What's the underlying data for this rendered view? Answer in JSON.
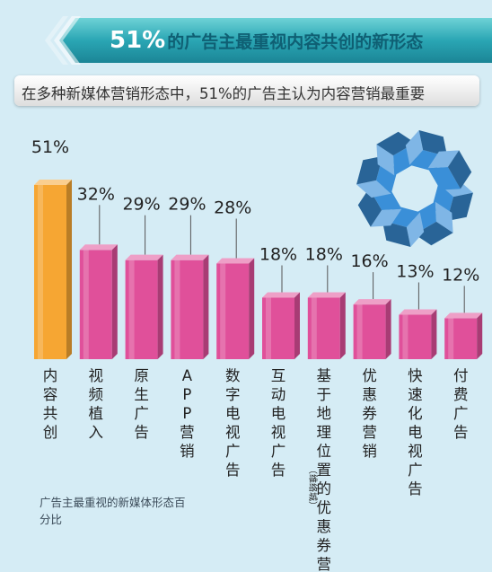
{
  "header": {
    "title_pct": "51%",
    "title_rest": "的广告主最重视内容共创的新形态",
    "subtitle": "在多种新媒体营销形态中，51%的广告主认为内容营销最重要"
  },
  "footnote": "广告主最重视的新媒体形态百分比",
  "colors": {
    "highlight_bar": "#f6a633",
    "bar": "#e0509a",
    "background": "#d5ecf5",
    "banner": "#2aa6b4",
    "cube": "#3a8fd8"
  },
  "chart_data": {
    "type": "bar",
    "title": "",
    "xlabel": "",
    "ylabel": "",
    "categories": [
      "内容共创",
      "视频植入",
      "原生广告",
      "APP营销",
      "数字电视广告",
      "互动电视广告",
      "基于地理位置的优惠券营销",
      "优惠券营销",
      "快速化电视广告",
      "付费广告"
    ],
    "category_notes": [
      "",
      "",
      "",
      "",
      "",
      "",
      "（维络城）",
      "",
      "",
      ""
    ],
    "values": [
      51,
      32,
      29,
      29,
      28,
      18,
      18,
      16,
      13,
      12
    ],
    "value_labels": [
      "51%",
      "32%",
      "29%",
      "29%",
      "28%",
      "18%",
      "18%",
      "16%",
      "13%",
      "12%"
    ],
    "highlight_index": 0,
    "ylim": [
      0,
      51
    ],
    "grid": false,
    "legend": "none"
  }
}
